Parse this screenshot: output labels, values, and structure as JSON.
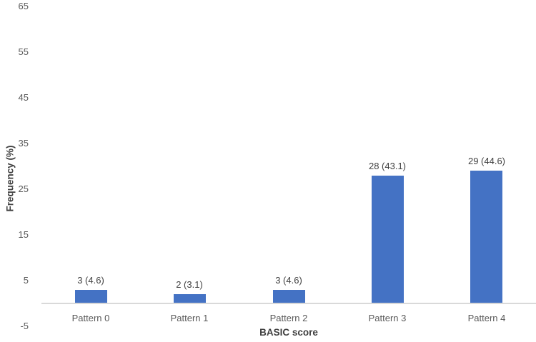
{
  "chart_data": {
    "type": "bar",
    "title": "",
    "xlabel": "BASIC score",
    "ylabel": "Frequency (%)",
    "categories": [
      "Pattern 0",
      "Pattern 1",
      "Pattern 2",
      "Pattern 3",
      "Pattern 4"
    ],
    "values": [
      3,
      2,
      3,
      28,
      29
    ],
    "percentages": [
      4.6,
      3.1,
      4.6,
      43.1,
      44.6
    ],
    "bar_labels": [
      "3 (4.6)",
      "2 (3.1)",
      "3 (4.6)",
      "28 (43.1)",
      "29 (44.6)"
    ],
    "ylim": [
      -5,
      65
    ],
    "yticks": [
      65,
      55,
      45,
      35,
      25,
      15,
      5,
      -5
    ],
    "ytick_labels": [
      "65",
      "55",
      "45",
      "35",
      "25",
      "15",
      "5",
      "-5"
    ],
    "grid": false,
    "legend": null,
    "bar_color": "#4472C4",
    "axis_line_color": "#D9D9D9",
    "tick_label_color": "#595959",
    "data_label_color": "#404040",
    "axis_title_color": "#404040",
    "background": "#FFFFFF"
  }
}
